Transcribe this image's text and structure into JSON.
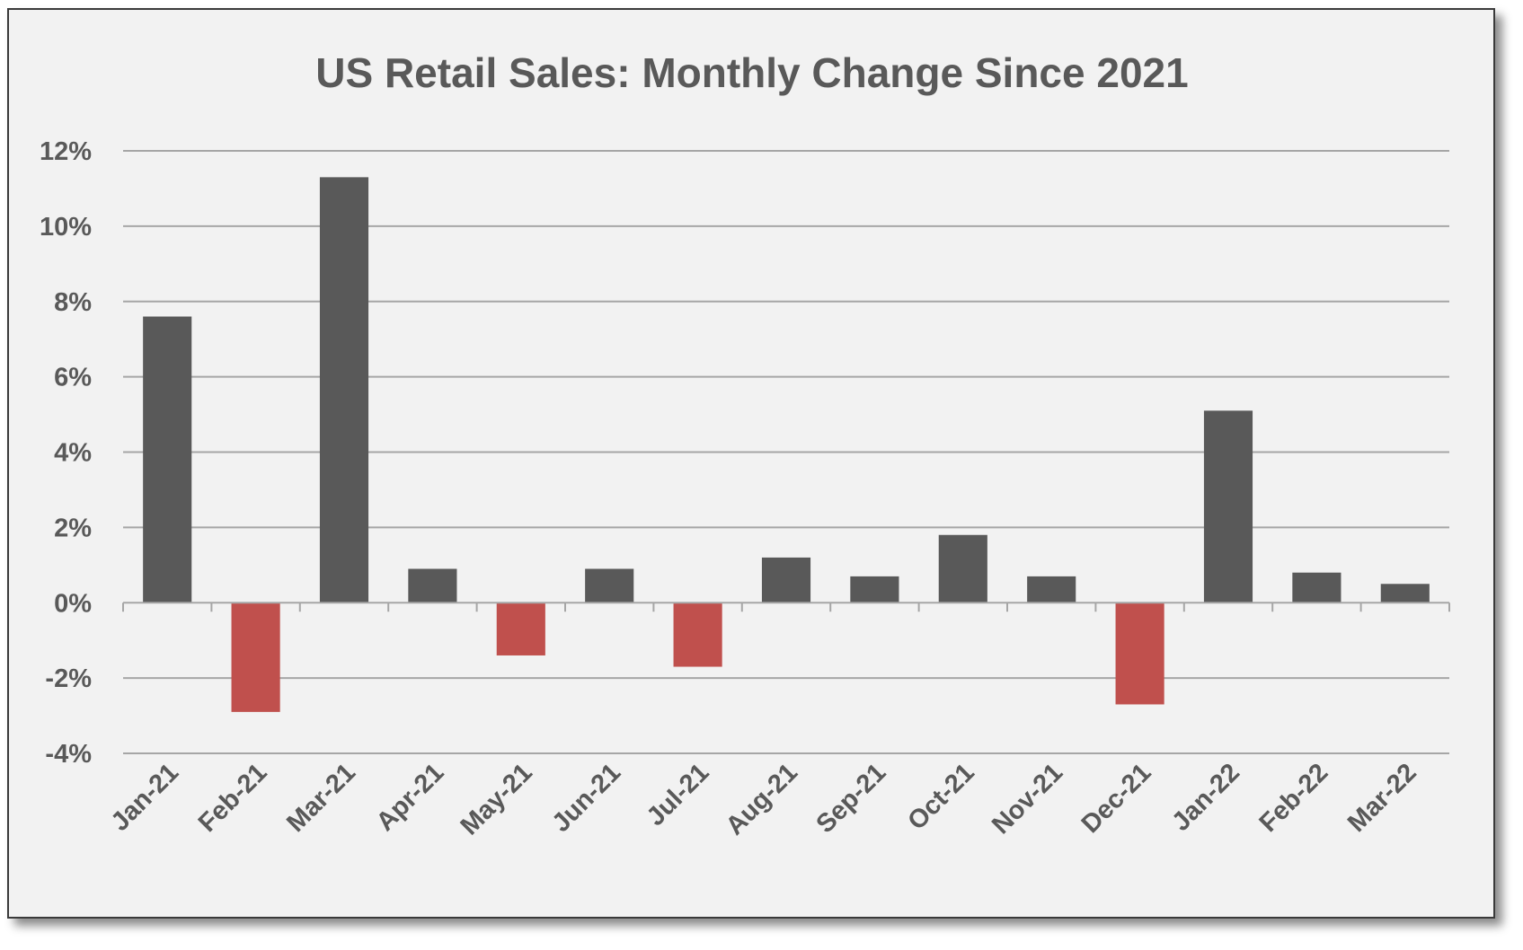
{
  "chart_data": {
    "type": "bar",
    "title": "US Retail Sales: Monthly Change Since 2021",
    "xlabel": "",
    "ylabel": "",
    "categories": [
      "Jan-21",
      "Feb-21",
      "Mar-21",
      "Apr-21",
      "May-21",
      "Jun-21",
      "Jul-21",
      "Aug-21",
      "Sep-21",
      "Oct-21",
      "Nov-21",
      "Dec-21",
      "Jan-22",
      "Feb-22",
      "Mar-22"
    ],
    "values": [
      7.6,
      -2.9,
      11.3,
      0.9,
      -1.4,
      0.9,
      -1.7,
      1.2,
      0.7,
      1.8,
      0.7,
      -2.7,
      5.1,
      0.8,
      0.5
    ],
    "ylim": [
      -4,
      12
    ],
    "yticks": [
      12,
      10,
      8,
      6,
      4,
      2,
      0,
      -2,
      -4
    ],
    "ytick_labels": [
      "12%",
      "10%",
      "8%",
      "6%",
      "4%",
      "2%",
      "0%",
      "-2%",
      "-4%"
    ],
    "grid": true,
    "legend": "none",
    "colors": {
      "positive": "#595959",
      "negative": "#c0504d",
      "gridline": "#a6a6a6",
      "background": "#f2f2f2",
      "text": "#595959"
    }
  }
}
